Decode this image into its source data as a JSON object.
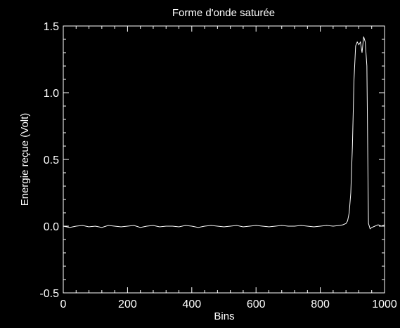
{
  "chart_data": {
    "type": "line",
    "title": "Forme d'onde saturée",
    "xlabel": "Bins",
    "ylabel": "Energie reçue (Volt)",
    "xlim": [
      0,
      1000
    ],
    "ylim": [
      -0.5,
      1.5
    ],
    "x_ticks": [
      0,
      200,
      400,
      600,
      800,
      1000
    ],
    "x_tick_labels": [
      "0",
      "200",
      "400",
      "600",
      "800",
      "1000"
    ],
    "y_ticks": [
      -0.5,
      0.0,
      0.5,
      1.0,
      1.5
    ],
    "y_tick_labels": [
      "-0.5",
      "0.0",
      "0.5",
      "1.0",
      "1.5"
    ],
    "grid": false,
    "colors": {
      "background": "#000000",
      "foreground": "#ffffff",
      "line": "#ffffff"
    },
    "series": [
      {
        "x": [
          0,
          20,
          40,
          60,
          80,
          100,
          120,
          140,
          160,
          180,
          200,
          220,
          240,
          260,
          280,
          300,
          320,
          340,
          360,
          380,
          400,
          420,
          440,
          460,
          480,
          500,
          520,
          540,
          560,
          580,
          600,
          620,
          640,
          660,
          680,
          700,
          720,
          740,
          760,
          780,
          800,
          820,
          840,
          860,
          870,
          880,
          885,
          890,
          895,
          900,
          905,
          910,
          915,
          920,
          925,
          930,
          935,
          940,
          945,
          950,
          955,
          960,
          970,
          980,
          990,
          1000
        ],
        "y": [
          0.0,
          -0.01,
          0.0,
          0.005,
          -0.005,
          0.0,
          -0.01,
          0.005,
          0.0,
          -0.005,
          0.0,
          0.005,
          -0.01,
          0.0,
          0.005,
          -0.005,
          0.0,
          0.0,
          -0.005,
          0.005,
          0.0,
          -0.01,
          0.0,
          0.005,
          0.0,
          -0.005,
          0.0,
          0.005,
          -0.005,
          0.0,
          0.005,
          0.0,
          -0.005,
          0.0,
          0.005,
          0.0,
          0.0,
          0.005,
          0.0,
          -0.005,
          0.0,
          0.005,
          0.0,
          0.005,
          0.01,
          0.02,
          0.04,
          0.1,
          0.25,
          0.6,
          1.1,
          1.35,
          1.38,
          1.36,
          1.38,
          1.3,
          1.42,
          1.38,
          1.2,
          0.02,
          -0.02,
          -0.01,
          0.0,
          0.01,
          0.0,
          0.01
        ]
      }
    ]
  }
}
